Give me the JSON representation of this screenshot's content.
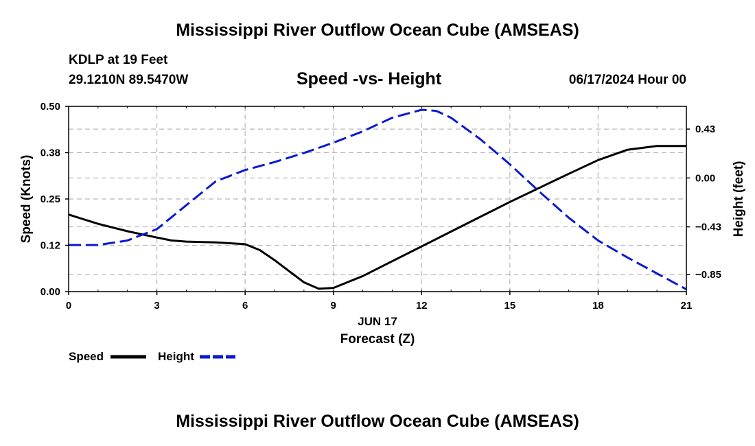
{
  "page": {
    "title": "Mississippi River Outflow Ocean Cube (AMSEAS)",
    "title_bottom": "Mississippi River Outflow Ocean Cube (AMSEAS)",
    "station": "KDLP at 19 Feet",
    "coords": "29.1210N  89.5470W",
    "datetime": "06/17/2024 Hour 00"
  },
  "chart_data": {
    "type": "line",
    "title": "Speed -vs- Height",
    "xlabel": "Forecast (Z)",
    "date_label": "JUN 17",
    "ylabel": "Speed (Knots)",
    "y2label": "Height (feet)",
    "x_ticks": [
      0,
      3,
      6,
      9,
      12,
      15,
      18,
      21
    ],
    "x_tick_labels": [
      "0",
      "3",
      "6",
      "9",
      "12",
      "15",
      "18",
      "21"
    ],
    "xlim": [
      0,
      21
    ],
    "ylim": [
      0,
      0.5
    ],
    "y_ticks": [
      0.0,
      0.125,
      0.25,
      0.375,
      0.5
    ],
    "y_tick_labels": [
      "0.00",
      "0.12",
      "0.25",
      "0.38",
      "0.50"
    ],
    "y2lim": [
      -1.0,
      0.63
    ],
    "y2_ticks": [
      -0.85,
      -0.43,
      0.0,
      0.43
    ],
    "y2_tick_labels": [
      "−0.85",
      "−0.43",
      "0.00",
      "0.43"
    ],
    "grid": true,
    "legend": "bottom-left",
    "series": [
      {
        "name": "Speed",
        "axis": "left",
        "color": "#000000",
        "dash": "solid",
        "x": [
          0,
          1,
          2,
          3,
          3.5,
          4,
          5,
          6,
          6.5,
          7,
          7.5,
          8,
          8.5,
          9,
          10,
          11,
          12,
          13,
          14,
          15,
          16,
          17,
          18,
          19,
          20,
          21
        ],
        "values": [
          0.208,
          0.183,
          0.163,
          0.146,
          0.138,
          0.135,
          0.133,
          0.128,
          0.112,
          0.085,
          0.055,
          0.025,
          0.008,
          0.01,
          0.042,
          0.082,
          0.122,
          0.162,
          0.202,
          0.242,
          0.28,
          0.318,
          0.355,
          0.383,
          0.393,
          0.393
        ]
      },
      {
        "name": "Height",
        "axis": "right",
        "color": "#0a1ad0",
        "dash": "dashed",
        "x": [
          0,
          1,
          2,
          3,
          4,
          5,
          6,
          7,
          8,
          9,
          10,
          11,
          12,
          12.5,
          13,
          14,
          15,
          16,
          17,
          18,
          19,
          20,
          21
        ],
        "values": [
          -0.59,
          -0.59,
          -0.55,
          -0.45,
          -0.24,
          -0.03,
          0.07,
          0.14,
          0.22,
          0.31,
          0.41,
          0.53,
          0.6,
          0.59,
          0.53,
          0.34,
          0.12,
          -0.12,
          -0.35,
          -0.55,
          -0.7,
          -0.84,
          -0.98
        ]
      }
    ]
  }
}
